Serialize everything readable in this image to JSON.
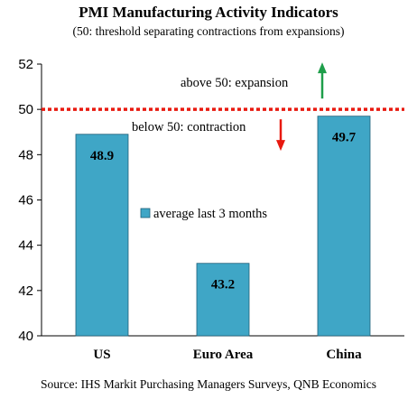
{
  "title": "PMI Manufacturing Activity Indicators",
  "subtitle": "(50: threshold separating contractions from expansions)",
  "source": "Source: IHS Markit Purchasing Managers Surveys, QNB Economics",
  "colors": {
    "bar": "#3fa6c6",
    "bar_stroke": "#1f5f79",
    "threshold": "#e8190f",
    "up_arrow": "#1e9e4a",
    "down_arrow": "#e8190f"
  },
  "chart_data": {
    "type": "bar",
    "categories": [
      "US",
      "Euro Area",
      "China"
    ],
    "series": [
      {
        "name": "average last 3 months",
        "values": [
          48.9,
          43.2,
          49.7
        ]
      }
    ],
    "data_labels": [
      "48.9",
      "43.2",
      "49.7"
    ],
    "ylim": [
      40,
      52
    ],
    "yticks": [
      40,
      42,
      44,
      46,
      48,
      50,
      52
    ],
    "threshold": 50,
    "annotations": {
      "above": "above 50: expansion",
      "below": "below 50: contraction"
    },
    "grid": false,
    "legend_position": "center"
  }
}
